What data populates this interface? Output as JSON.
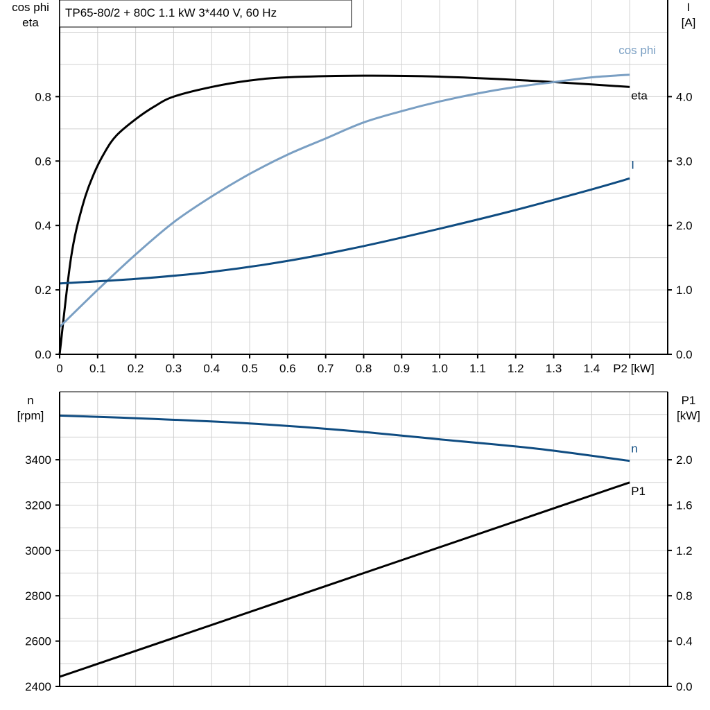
{
  "title": "TP65-80/2 + 80C   1.1 kW   3*440 V, 60 Hz",
  "colors": {
    "eta": "#000000",
    "cos_phi": "#7a9fc3",
    "I": "#0f4c81",
    "n": "#0f4c81",
    "P1": "#000000",
    "grid": "#d0d0d0"
  },
  "chart_data": [
    {
      "type": "line",
      "xlabel": "P2 [kW]",
      "x_ticks": [
        "0",
        "0.1",
        "0.2",
        "0.3",
        "0.4",
        "0.5",
        "0.6",
        "0.7",
        "0.8",
        "0.9",
        "1.0",
        "1.1",
        "1.2",
        "1.3",
        "1.4"
      ],
      "xlim": [
        0,
        1.6
      ],
      "ylabel_left": [
        "cos phi",
        "eta"
      ],
      "ylim_left": [
        0,
        1.1
      ],
      "y_ticks_left": [
        "0.0",
        "0.2",
        "0.4",
        "0.6",
        "0.8"
      ],
      "ylabel_right": [
        "I",
        "[A]"
      ],
      "ylim_right": [
        0,
        5.5
      ],
      "y_ticks_right": [
        "0.0",
        "1.0",
        "2.0",
        "3.0",
        "4.0"
      ],
      "grid": true,
      "series": [
        {
          "name": "eta",
          "axis": "left",
          "x": [
            0,
            0.03,
            0.06,
            0.09,
            0.12,
            0.15,
            0.2,
            0.25,
            0.3,
            0.4,
            0.5,
            0.6,
            0.8,
            1.0,
            1.2,
            1.4,
            1.5
          ],
          "y": [
            0,
            0.3,
            0.46,
            0.56,
            0.63,
            0.68,
            0.73,
            0.77,
            0.8,
            0.83,
            0.85,
            0.86,
            0.865,
            0.862,
            0.852,
            0.838,
            0.83
          ]
        },
        {
          "name": "cos phi",
          "axis": "left",
          "x": [
            0,
            0.1,
            0.2,
            0.3,
            0.4,
            0.5,
            0.6,
            0.7,
            0.8,
            0.9,
            1.0,
            1.1,
            1.2,
            1.3,
            1.4,
            1.5
          ],
          "y": [
            0.085,
            0.2,
            0.31,
            0.41,
            0.49,
            0.56,
            0.62,
            0.67,
            0.72,
            0.755,
            0.785,
            0.81,
            0.83,
            0.845,
            0.86,
            0.868
          ]
        },
        {
          "name": "I",
          "axis": "right",
          "x": [
            0,
            0.2,
            0.4,
            0.6,
            0.8,
            1.0,
            1.2,
            1.4,
            1.5
          ],
          "y": [
            1.1,
            1.17,
            1.28,
            1.45,
            1.68,
            1.95,
            2.24,
            2.56,
            2.73
          ]
        }
      ]
    },
    {
      "type": "line",
      "xlim": [
        0,
        1.6
      ],
      "ylabel_left": [
        "n",
        "[rpm]"
      ],
      "ylim_left": [
        2400,
        3700
      ],
      "y_ticks_left": [
        "2400",
        "2600",
        "2800",
        "3000",
        "3200",
        "3400"
      ],
      "ylabel_right": [
        "P1",
        "[kW]"
      ],
      "ylim_right": [
        0,
        2.6
      ],
      "y_ticks_right": [
        "0.0",
        "0.4",
        "0.8",
        "1.2",
        "1.6",
        "2.0"
      ],
      "grid": true,
      "series": [
        {
          "name": "n",
          "axis": "left",
          "x": [
            0,
            0.25,
            0.5,
            0.75,
            1.0,
            1.25,
            1.5
          ],
          "y": [
            3595,
            3580,
            3560,
            3530,
            3490,
            3450,
            3395
          ]
        },
        {
          "name": "P1",
          "axis": "right",
          "x": [
            0,
            1.5
          ],
          "y": [
            0.085,
            1.8
          ]
        }
      ]
    }
  ]
}
